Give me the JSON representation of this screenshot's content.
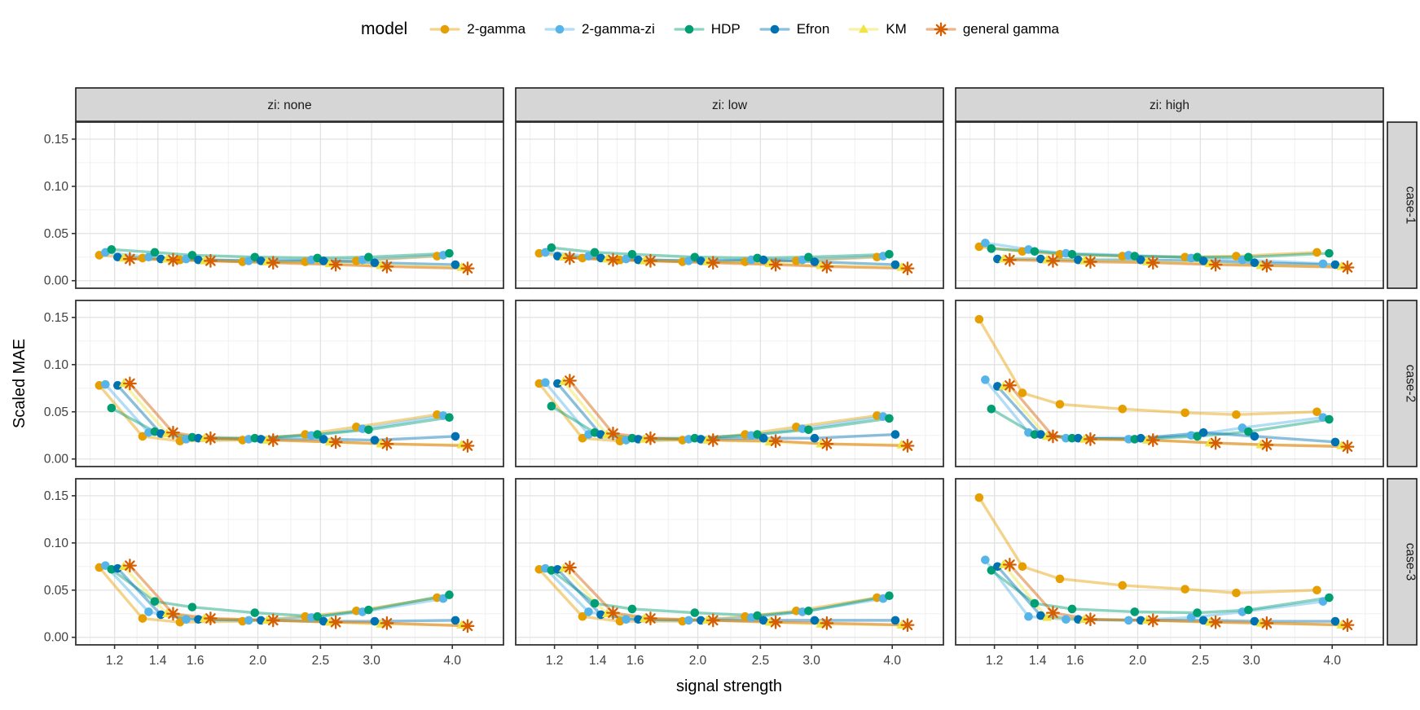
{
  "chart_data": {
    "type": "line",
    "title": "",
    "xlabel": "signal strength",
    "ylabel": "Scaled MAE",
    "legend_title": "model",
    "x_scale": "log",
    "x": [
      1.2,
      1.4,
      1.6,
      2.0,
      2.5,
      3.0,
      4.0
    ],
    "xtick_labels": [
      "1.2",
      "1.4",
      "1.6",
      "2.0",
      "2.5",
      "3.0",
      "4.0"
    ],
    "yticks": [
      0,
      0.05,
      0.1,
      0.15
    ],
    "ytick_labels": [
      "0.00",
      "0.05",
      "0.10",
      "0.15"
    ],
    "xlim": [
      1.045,
      4.8
    ],
    "ylim": [
      -0.008,
      0.168
    ],
    "x_minor": [
      1.1,
      1.3,
      1.5,
      1.8,
      2.25,
      2.75,
      3.5,
      4.5
    ],
    "y_minor": [
      0.025,
      0.075,
      0.125
    ],
    "grid": "on",
    "legend_position": "top",
    "col_facet_labels": [
      "zi: none",
      "zi: low",
      "zi: high"
    ],
    "row_facet_labels": [
      "case-1",
      "case-2",
      "case-3"
    ],
    "colors": {
      "strip_fill": "#d6d6d6",
      "strip_border": "#1a1a1a",
      "panel_border": "#333333",
      "grid_major": "#e2e2e2",
      "grid_minor": "#f0f0f0",
      "tick_label": "#404040",
      "text": "#1a1a1a"
    },
    "series": [
      {
        "name": "2-gamma",
        "color": "#E69F00",
        "marker": "circle"
      },
      {
        "name": "2-gamma-zi",
        "color": "#56B4E9",
        "marker": "circle"
      },
      {
        "name": "HDP",
        "color": "#009E73",
        "marker": "circle"
      },
      {
        "name": "Efron",
        "color": "#0072B2",
        "marker": "circle"
      },
      {
        "name": "KM",
        "color": "#F0E442",
        "marker": "triangle"
      },
      {
        "name": "general gamma",
        "color": "#D55E00",
        "marker": "asterisk"
      }
    ],
    "panels": [
      {
        "row": "case-1",
        "col": "zi: none",
        "values": {
          "2-gamma": [
            0.027,
            0.024,
            0.022,
            0.02,
            0.02,
            0.021,
            0.026
          ],
          "2-gamma-zi": [
            0.03,
            0.025,
            0.023,
            0.021,
            0.022,
            0.022,
            0.027
          ],
          "HDP": [
            0.033,
            0.03,
            0.027,
            0.025,
            0.024,
            0.025,
            0.029
          ],
          "Efron": [
            0.025,
            0.023,
            0.022,
            0.021,
            0.021,
            0.019,
            0.017
          ],
          "KM": [
            0.024,
            0.023,
            0.021,
            0.02,
            0.018,
            0.016,
            0.014
          ],
          "general gamma": [
            0.023,
            0.022,
            0.021,
            0.019,
            0.017,
            0.015,
            0.013
          ]
        }
      },
      {
        "row": "case-1",
        "col": "zi: low",
        "values": {
          "2-gamma": [
            0.029,
            0.024,
            0.022,
            0.02,
            0.02,
            0.021,
            0.025
          ],
          "2-gamma-zi": [
            0.03,
            0.026,
            0.023,
            0.021,
            0.022,
            0.022,
            0.026
          ],
          "HDP": [
            0.035,
            0.03,
            0.028,
            0.025,
            0.024,
            0.025,
            0.028
          ],
          "Efron": [
            0.026,
            0.024,
            0.022,
            0.021,
            0.022,
            0.02,
            0.017
          ],
          "KM": [
            0.025,
            0.023,
            0.021,
            0.02,
            0.018,
            0.016,
            0.014
          ],
          "general gamma": [
            0.024,
            0.022,
            0.021,
            0.019,
            0.017,
            0.015,
            0.013
          ]
        }
      },
      {
        "row": "case-1",
        "col": "zi: high",
        "values": {
          "2-gamma": [
            0.036,
            0.031,
            0.028,
            0.026,
            0.025,
            0.026,
            0.03
          ],
          "2-gamma-zi": [
            0.04,
            0.033,
            0.029,
            0.027,
            0.024,
            0.022,
            0.018
          ],
          "HDP": [
            0.034,
            0.031,
            0.028,
            0.026,
            0.025,
            0.025,
            0.029
          ],
          "Efron": [
            0.023,
            0.023,
            0.022,
            0.022,
            0.021,
            0.019,
            0.017
          ],
          "KM": [
            0.023,
            0.022,
            0.021,
            0.02,
            0.018,
            0.016,
            0.015
          ],
          "general gamma": [
            0.022,
            0.021,
            0.02,
            0.019,
            0.017,
            0.016,
            0.014
          ]
        }
      },
      {
        "row": "case-2",
        "col": "zi: none",
        "values": {
          "2-gamma": [
            0.078,
            0.024,
            0.019,
            0.02,
            0.026,
            0.034,
            0.047
          ],
          "2-gamma-zi": [
            0.079,
            0.028,
            0.021,
            0.021,
            0.025,
            0.032,
            0.046
          ],
          "HDP": [
            0.054,
            0.029,
            0.023,
            0.022,
            0.026,
            0.031,
            0.044
          ],
          "Efron": [
            0.078,
            0.027,
            0.022,
            0.021,
            0.021,
            0.02,
            0.024
          ],
          "KM": [
            0.08,
            0.027,
            0.022,
            0.02,
            0.018,
            0.016,
            0.015
          ],
          "general gamma": [
            0.08,
            0.028,
            0.022,
            0.02,
            0.018,
            0.016,
            0.014
          ]
        }
      },
      {
        "row": "case-2",
        "col": "zi: low",
        "values": {
          "2-gamma": [
            0.08,
            0.022,
            0.019,
            0.02,
            0.026,
            0.034,
            0.046
          ],
          "2-gamma-zi": [
            0.081,
            0.026,
            0.02,
            0.021,
            0.025,
            0.032,
            0.045
          ],
          "HDP": [
            0.056,
            0.028,
            0.022,
            0.022,
            0.026,
            0.031,
            0.043
          ],
          "Efron": [
            0.08,
            0.026,
            0.021,
            0.021,
            0.022,
            0.022,
            0.026
          ],
          "KM": [
            0.082,
            0.026,
            0.021,
            0.02,
            0.018,
            0.016,
            0.015
          ],
          "general gamma": [
            0.083,
            0.027,
            0.022,
            0.02,
            0.019,
            0.016,
            0.014
          ]
        }
      },
      {
        "row": "case-2",
        "col": "zi: high",
        "values": {
          "2-gamma": [
            0.148,
            0.07,
            0.058,
            0.053,
            0.049,
            0.047,
            0.05
          ],
          "2-gamma-zi": [
            0.084,
            0.028,
            0.022,
            0.021,
            0.025,
            0.033,
            0.044
          ],
          "HDP": [
            0.053,
            0.026,
            0.022,
            0.021,
            0.024,
            0.029,
            0.042
          ],
          "Efron": [
            0.077,
            0.026,
            0.022,
            0.022,
            0.028,
            0.024,
            0.018
          ],
          "KM": [
            0.077,
            0.024,
            0.021,
            0.02,
            0.017,
            0.015,
            0.014
          ],
          "general gamma": [
            0.078,
            0.024,
            0.021,
            0.02,
            0.017,
            0.015,
            0.013
          ]
        }
      },
      {
        "row": "case-3",
        "col": "zi: none",
        "values": {
          "2-gamma": [
            0.074,
            0.02,
            0.016,
            0.017,
            0.022,
            0.028,
            0.042
          ],
          "2-gamma-zi": [
            0.076,
            0.027,
            0.019,
            0.018,
            0.021,
            0.027,
            0.041
          ],
          "HDP": [
            0.072,
            0.038,
            0.032,
            0.026,
            0.022,
            0.029,
            0.045
          ],
          "Efron": [
            0.073,
            0.024,
            0.019,
            0.018,
            0.017,
            0.017,
            0.018
          ],
          "KM": [
            0.075,
            0.025,
            0.02,
            0.018,
            0.016,
            0.014,
            0.013
          ],
          "general gamma": [
            0.076,
            0.025,
            0.02,
            0.018,
            0.016,
            0.015,
            0.012
          ]
        }
      },
      {
        "row": "case-3",
        "col": "zi: low",
        "values": {
          "2-gamma": [
            0.072,
            0.022,
            0.017,
            0.017,
            0.022,
            0.028,
            0.042
          ],
          "2-gamma-zi": [
            0.073,
            0.027,
            0.019,
            0.018,
            0.021,
            0.027,
            0.041
          ],
          "HDP": [
            0.071,
            0.036,
            0.03,
            0.026,
            0.023,
            0.028,
            0.044
          ],
          "Efron": [
            0.072,
            0.024,
            0.019,
            0.018,
            0.018,
            0.018,
            0.018
          ],
          "KM": [
            0.073,
            0.025,
            0.02,
            0.018,
            0.016,
            0.014,
            0.013
          ],
          "general gamma": [
            0.074,
            0.026,
            0.02,
            0.018,
            0.016,
            0.015,
            0.013
          ]
        }
      },
      {
        "row": "case-3",
        "col": "zi: high",
        "values": {
          "2-gamma": [
            0.148,
            0.075,
            0.062,
            0.055,
            0.051,
            0.047,
            0.05
          ],
          "2-gamma-zi": [
            0.082,
            0.022,
            0.019,
            0.018,
            0.021,
            0.027,
            0.038
          ],
          "HDP": [
            0.071,
            0.036,
            0.03,
            0.027,
            0.026,
            0.029,
            0.042
          ],
          "Efron": [
            0.075,
            0.023,
            0.019,
            0.018,
            0.018,
            0.017,
            0.017
          ],
          "KM": [
            0.077,
            0.021,
            0.019,
            0.018,
            0.016,
            0.015,
            0.013
          ],
          "general gamma": [
            0.077,
            0.026,
            0.019,
            0.018,
            0.016,
            0.015,
            0.013
          ]
        }
      }
    ]
  }
}
